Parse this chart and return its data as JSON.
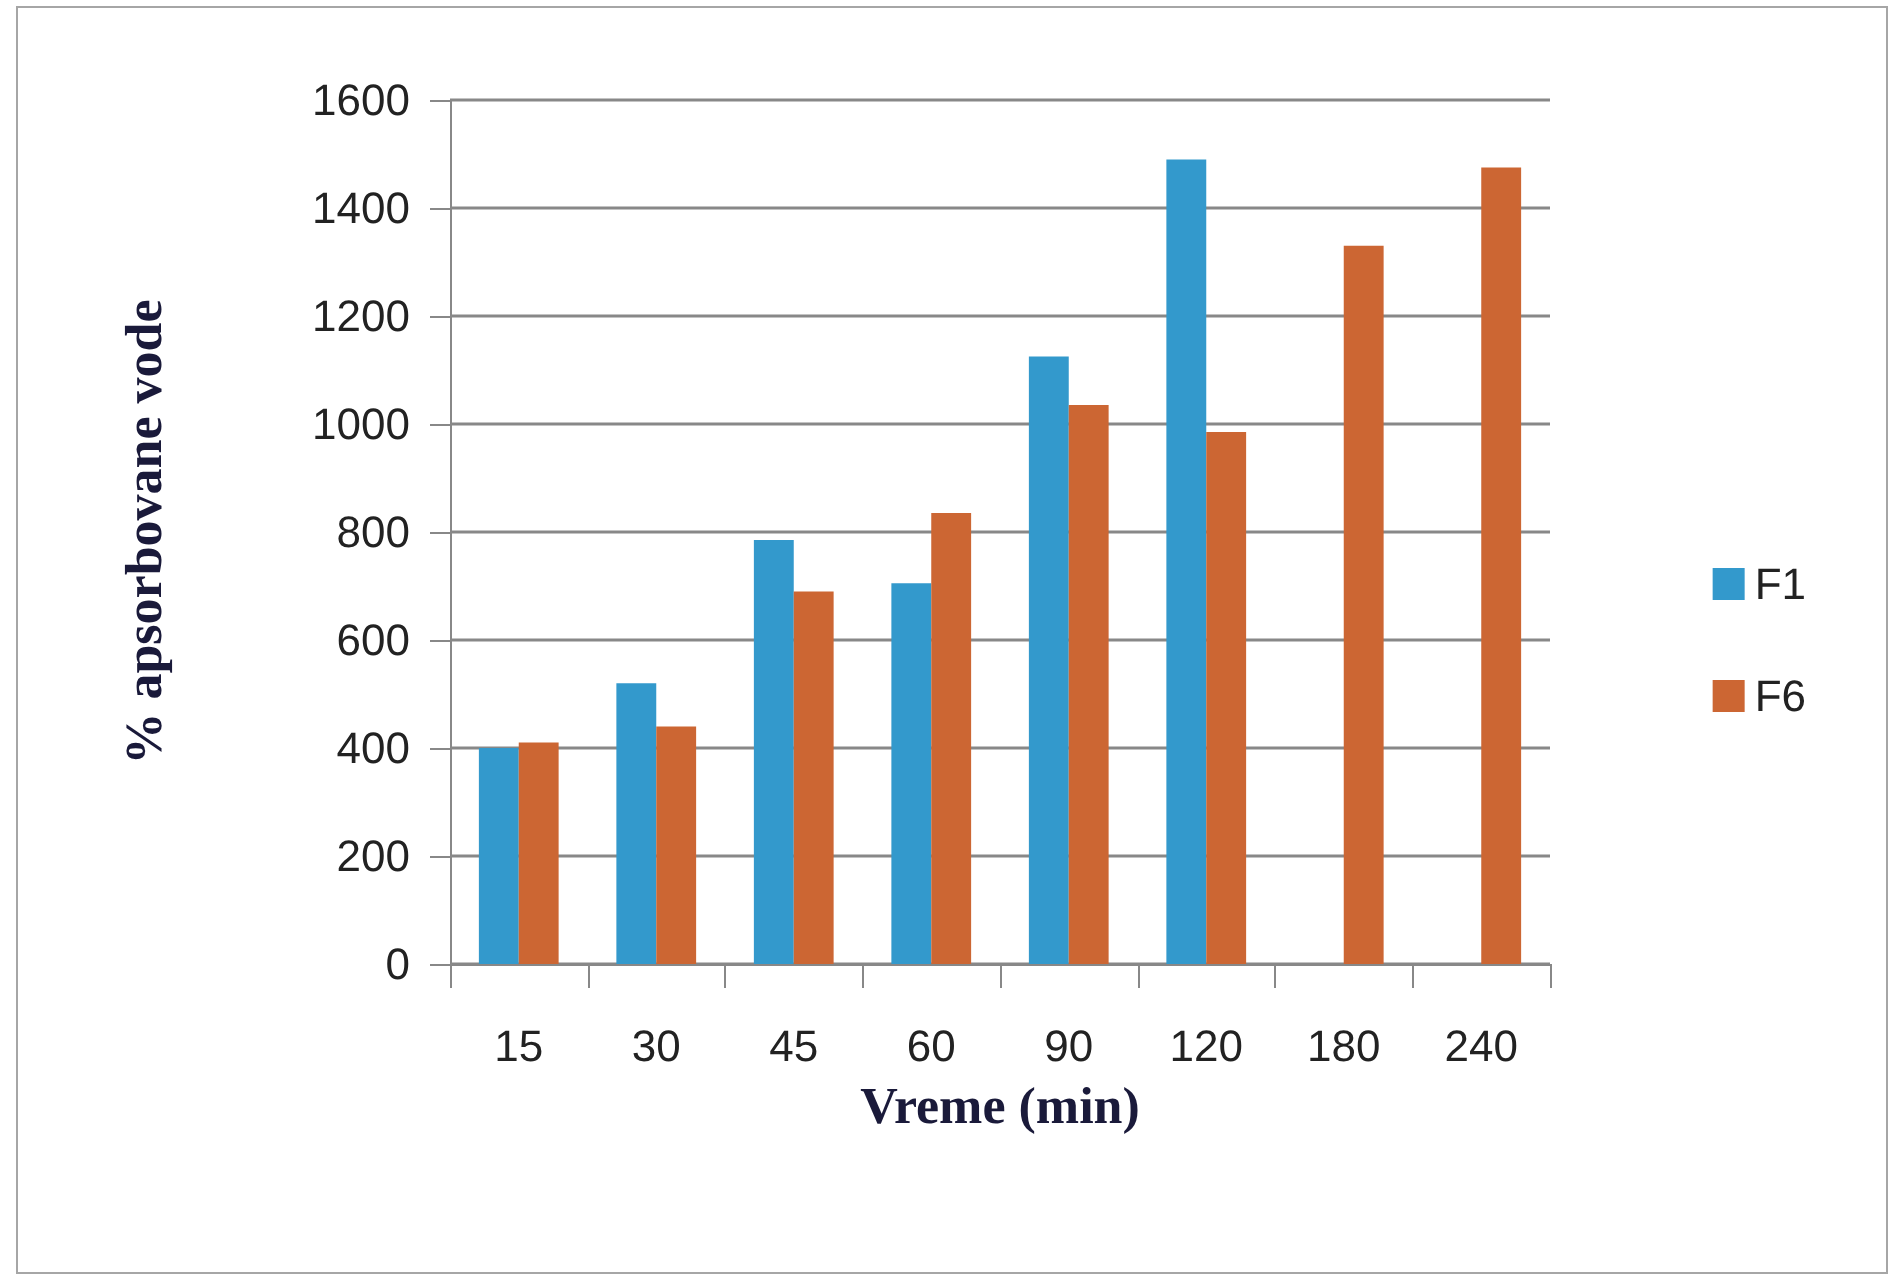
{
  "chart_data": {
    "type": "bar",
    "xlabel": "Vreme (min)",
    "ylabel": "% apsorbovane vode",
    "categories": [
      "15",
      "30",
      "45",
      "60",
      "90",
      "120",
      "180",
      "240"
    ],
    "series": [
      {
        "name": "F1",
        "color": "#3399cc",
        "values": [
          400,
          520,
          785,
          705,
          1125,
          1490,
          null,
          null
        ]
      },
      {
        "name": "F6",
        "color": "#cc6633",
        "values": [
          410,
          440,
          690,
          835,
          1035,
          985,
          1330,
          1475
        ]
      }
    ],
    "ylim": [
      0,
      1600
    ],
    "yticks": [
      0,
      200,
      400,
      600,
      800,
      1000,
      1200,
      1400,
      1600
    ],
    "grid": "y",
    "legend": "right"
  }
}
